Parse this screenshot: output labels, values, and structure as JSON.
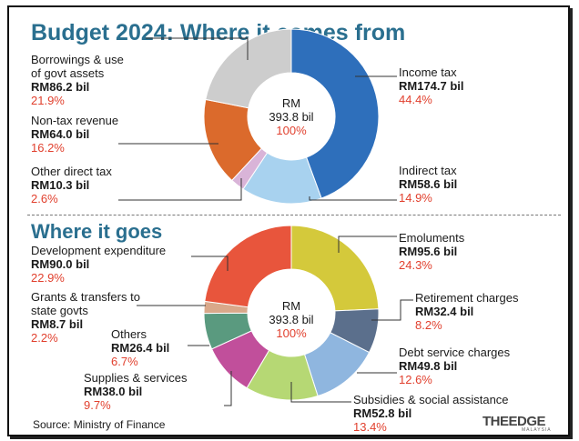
{
  "titles": {
    "top": "Budget 2024: Where it comes from",
    "bottom": "Where it goes"
  },
  "chart_data": [
    {
      "type": "pie",
      "title": "Budget 2024: Where it comes from",
      "center": {
        "line1": "RM",
        "line2": "393.8 bil",
        "line3": "100%"
      },
      "slices": [
        {
          "label": "Income tax",
          "amount": "RM174.7 bil",
          "percent_text": "44.4%",
          "value": 44.4,
          "color": "#2e6fbb"
        },
        {
          "label": "Indirect tax",
          "amount": "RM58.6 bil",
          "percent_text": "14.9%",
          "value": 14.9,
          "color": "#a8d2ef"
        },
        {
          "label": "Other direct tax",
          "amount": "RM10.3 bil",
          "percent_text": "2.6%",
          "value": 2.6,
          "color": "#d9b4d8"
        },
        {
          "label": "Non-tax revenue",
          "amount": "RM64.0 bil",
          "percent_text": "16.2%",
          "value": 16.2,
          "color": "#db6a2c"
        },
        {
          "label_lines": [
            "Borrowings & use",
            "of govt assets"
          ],
          "amount": "RM86.2 bil",
          "percent_text": "21.9%",
          "value": 21.9,
          "color": "#cdcdcd"
        }
      ]
    },
    {
      "type": "pie",
      "title": "Where it goes",
      "center": {
        "line1": "RM",
        "line2": "393.8 bil",
        "line3": "100%"
      },
      "slices": [
        {
          "label": "Emoluments",
          "amount": "RM95.6 bil",
          "percent_text": "24.3%",
          "value": 24.3,
          "color": "#d4c93b"
        },
        {
          "label": "Retirement charges",
          "amount": "RM32.4 bil",
          "percent_text": "8.2%",
          "value": 8.2,
          "color": "#5b6f8c"
        },
        {
          "label": "Debt service charges",
          "amount": "RM49.8 bil",
          "percent_text": "12.6%",
          "value": 12.6,
          "color": "#8fb6df"
        },
        {
          "label": "Subsidies & social assistance",
          "amount": "RM52.8 bil",
          "percent_text": "13.4%",
          "value": 13.4,
          "color": "#b6d874"
        },
        {
          "label": "Supplies & services",
          "amount": "RM38.0 bil",
          "percent_text": "9.7%",
          "value": 9.7,
          "color": "#c14f9b"
        },
        {
          "label": "Others",
          "amount": "RM26.4 bil",
          "percent_text": "6.7%",
          "value": 6.7,
          "color": "#5a9a7f"
        },
        {
          "label_lines": [
            "Grants & transfers to",
            "state govts"
          ],
          "amount": "RM8.7 bil",
          "percent_text": "2.2%",
          "value": 2.2,
          "color": "#d9a88a"
        },
        {
          "label": "Development expenditure",
          "amount": "RM90.0 bil",
          "percent_text": "22.9%",
          "value": 22.9,
          "color": "#e8553c"
        }
      ]
    }
  ],
  "footer": {
    "source": "Source: Ministry of Finance",
    "logo": "THEEDGE",
    "logo_sub": "MALAYSIA"
  }
}
